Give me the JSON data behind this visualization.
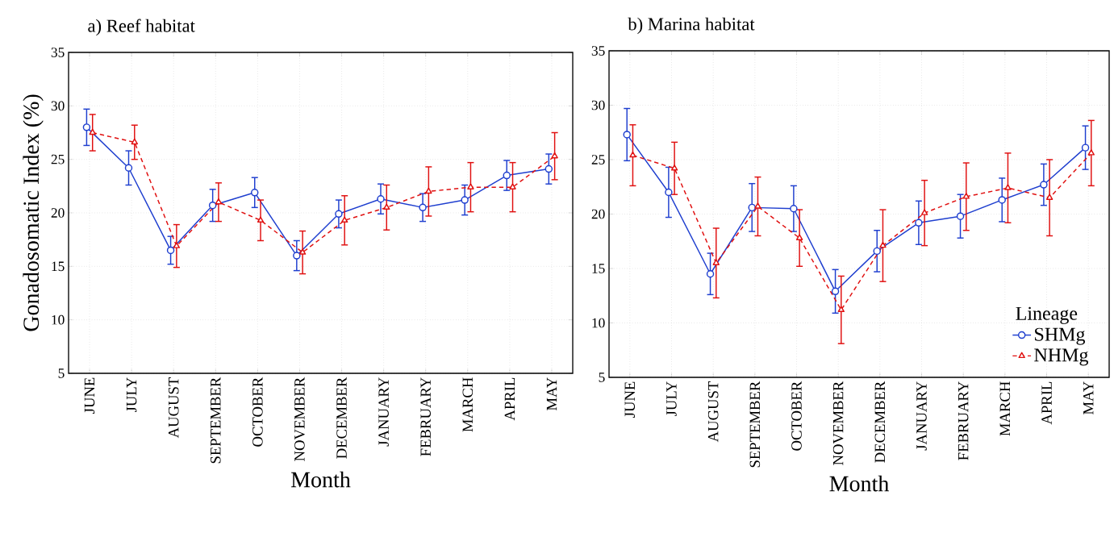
{
  "chart_data": [
    {
      "type": "line",
      "title": "a) Reef habitat",
      "xlabel": "Month",
      "ylabel": "Gonadosomatic Index (%)",
      "categories": [
        "JUNE",
        "JULY",
        "AUGUST",
        "SEPTEMBER",
        "OCTOBER",
        "NOVEMBER",
        "DECEMBER",
        "JANUARY",
        "FEBRUARY",
        "MARCH",
        "APRIL",
        "MAY"
      ],
      "series": [
        {
          "color": "#1f3fcf",
          "marker": "circle",
          "line_style": "solid",
          "values": [
            28.0,
            24.2,
            16.5,
            20.7,
            21.9,
            16.0,
            19.9,
            21.3,
            20.5,
            21.2,
            23.5,
            24.1
          ],
          "errors": [
            1.7,
            1.6,
            1.3,
            1.5,
            1.4,
            1.4,
            1.3,
            1.4,
            1.3,
            1.4,
            1.4,
            1.4
          ]
        },
        {
          "color": "#e01010",
          "marker": "triangle",
          "line_style": "dashed",
          "values": [
            27.5,
            26.6,
            16.9,
            21.0,
            19.3,
            16.3,
            19.3,
            20.5,
            22.0,
            22.4,
            22.4,
            25.3
          ],
          "errors": [
            1.7,
            1.6,
            2.0,
            1.8,
            1.9,
            2.0,
            2.3,
            2.1,
            2.3,
            2.3,
            2.3,
            2.2
          ]
        }
      ],
      "ylim": [
        5,
        35
      ],
      "yticks": [
        5,
        10,
        15,
        20,
        25,
        30,
        35
      ],
      "grid": true,
      "legend": false
    },
    {
      "type": "line",
      "title": "b) Marina habitat",
      "xlabel": "Month",
      "legend_title": "Lineage",
      "categories": [
        "JUNE",
        "JULY",
        "AUGUST",
        "SEPTEMBER",
        "OCTOBER",
        "NOVEMBER",
        "DECEMBER",
        "JANUARY",
        "FEBRUARY",
        "MARCH",
        "APRIL",
        "MAY"
      ],
      "series": [
        {
          "name": "SHMg",
          "color": "#1f3fcf",
          "marker": "circle",
          "line_style": "solid",
          "values": [
            27.3,
            22.0,
            14.5,
            20.6,
            20.5,
            12.9,
            16.6,
            19.2,
            19.8,
            21.3,
            22.7,
            26.1
          ],
          "errors": [
            2.4,
            2.3,
            1.9,
            2.2,
            2.1,
            2.0,
            1.9,
            2.0,
            2.0,
            2.0,
            1.9,
            2.0
          ]
        },
        {
          "name": "NHMg",
          "color": "#e01010",
          "marker": "triangle",
          "line_style": "dashed",
          "values": [
            25.4,
            24.2,
            15.5,
            20.7,
            17.8,
            11.2,
            17.1,
            20.1,
            21.6,
            22.4,
            21.5,
            25.6
          ],
          "errors": [
            2.8,
            2.4,
            3.2,
            2.7,
            2.6,
            3.1,
            3.3,
            3.0,
            3.1,
            3.2,
            3.5,
            3.0
          ]
        }
      ],
      "ylim": [
        5,
        35
      ],
      "yticks": [
        5,
        10,
        15,
        20,
        25,
        30,
        35
      ],
      "grid": true,
      "legend": "bottom right"
    }
  ]
}
